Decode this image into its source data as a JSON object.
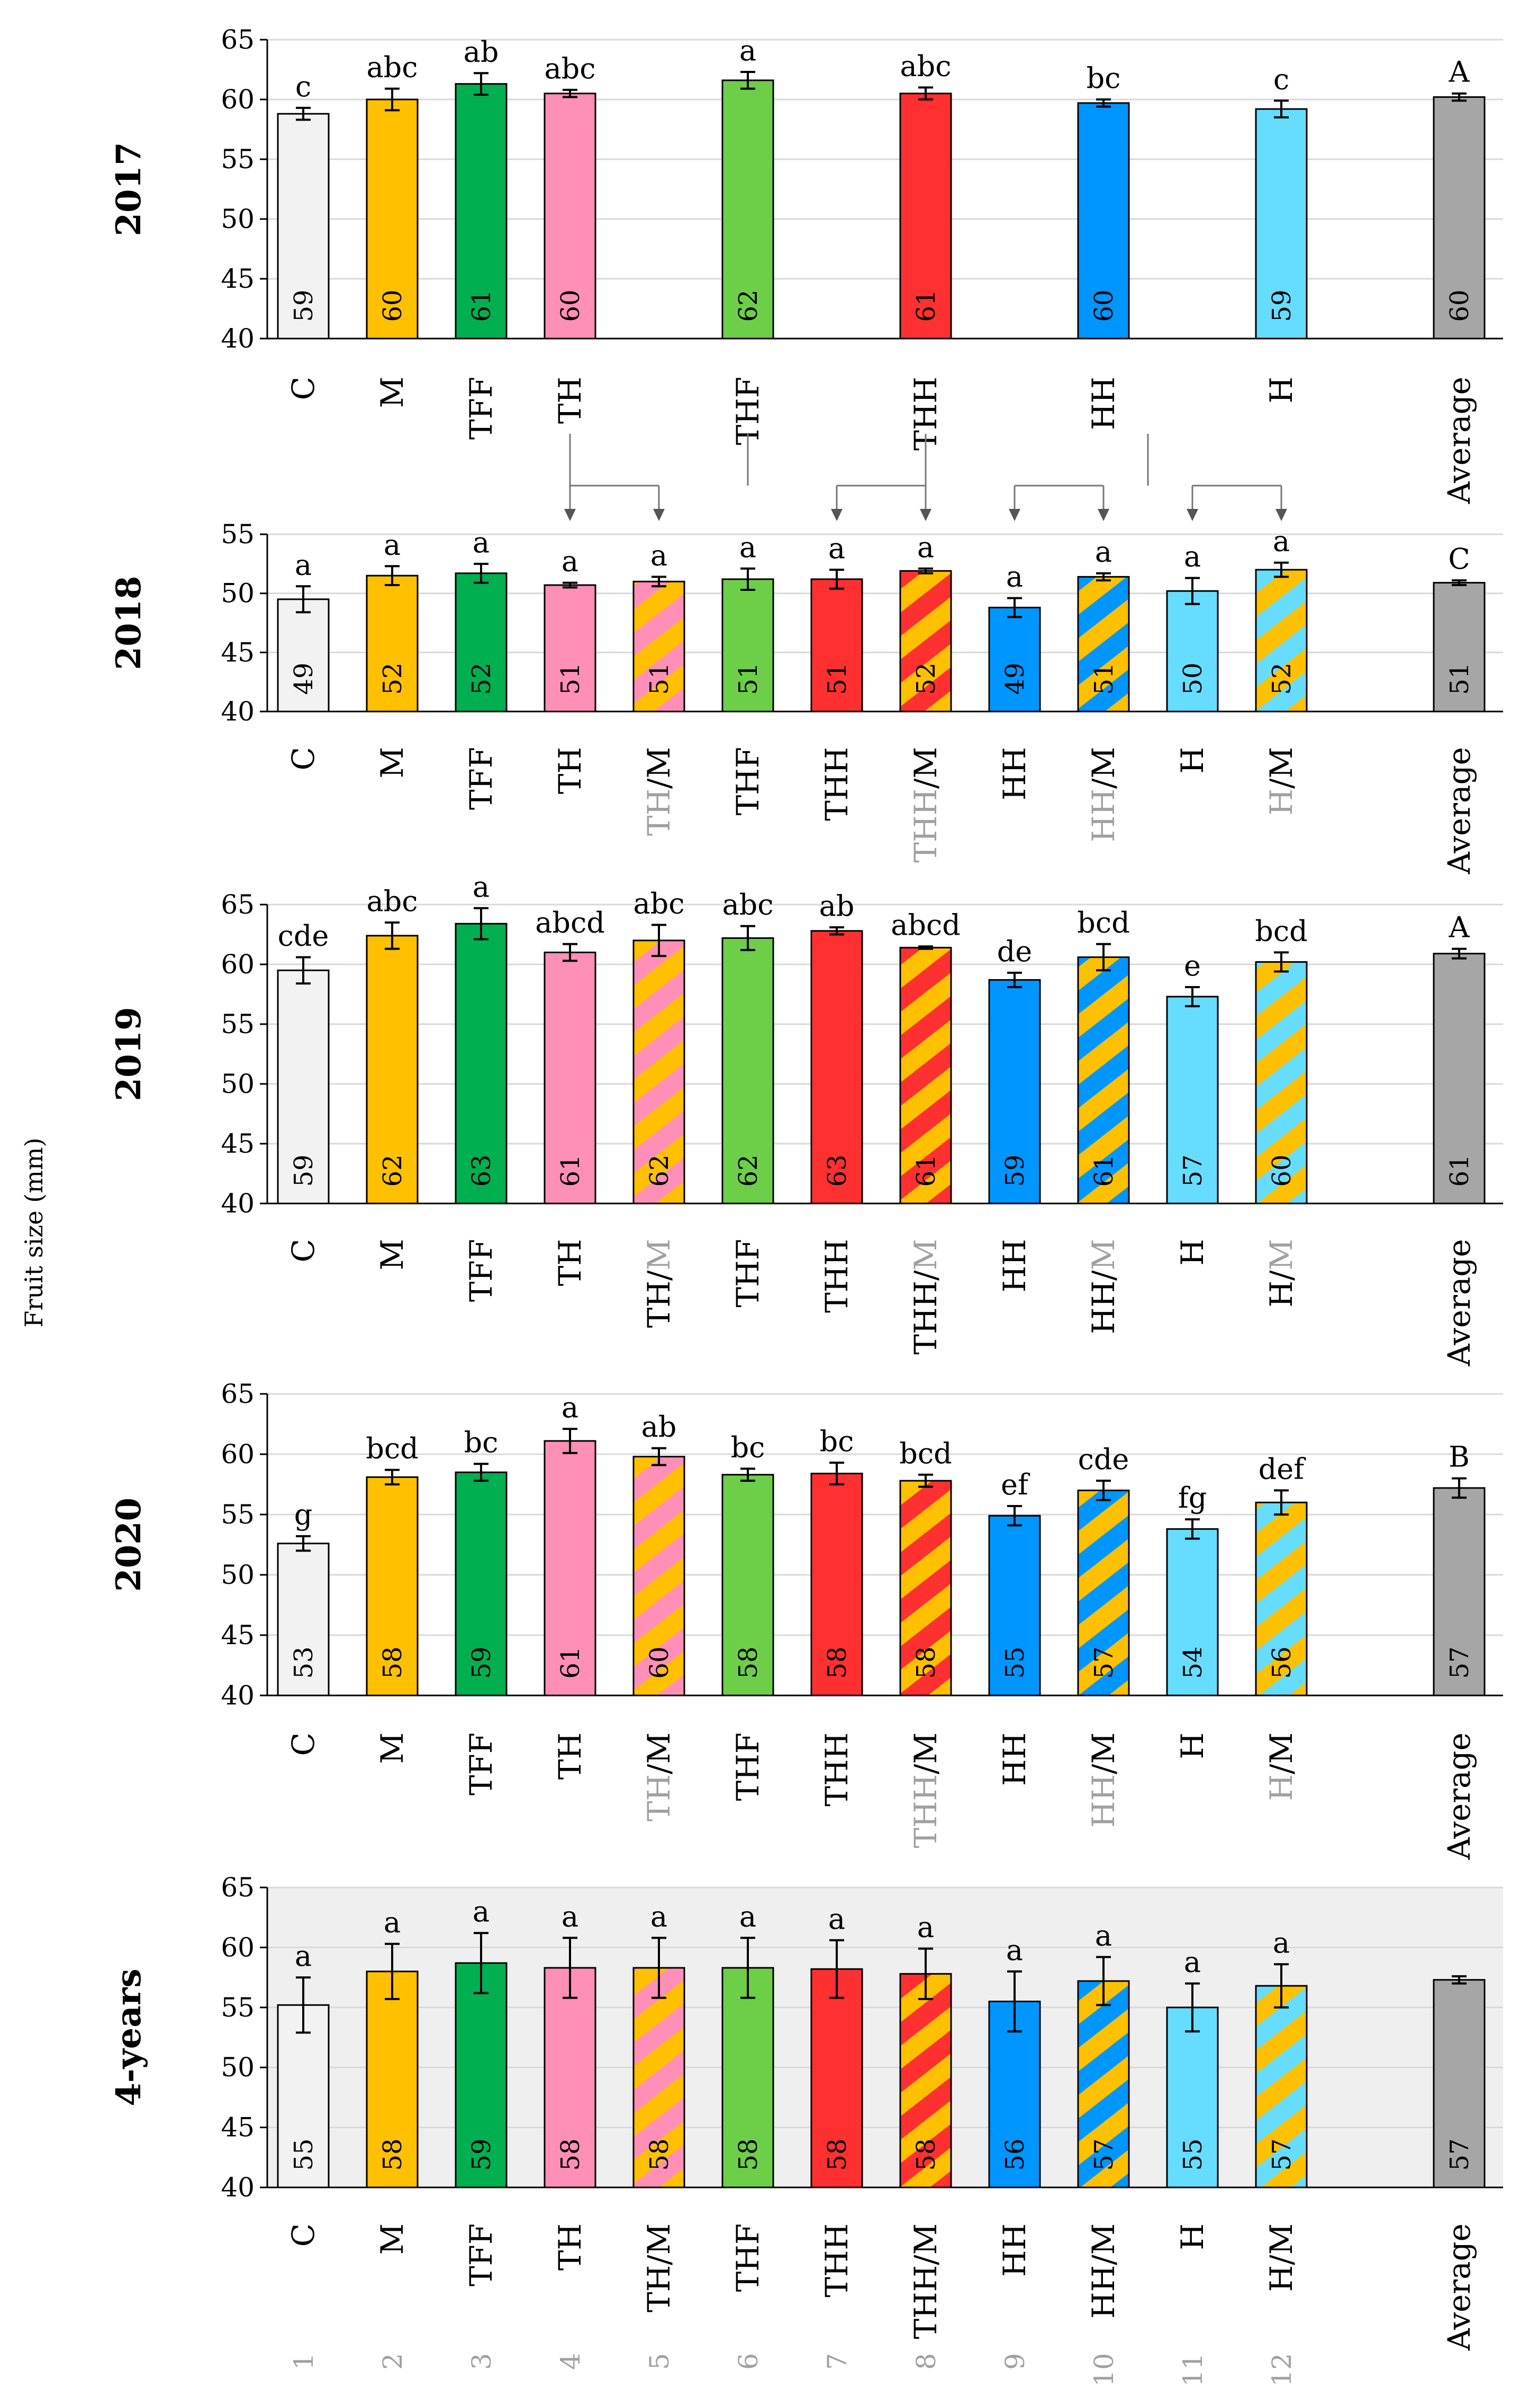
{
  "figure": {
    "ylabel": "Fruit size (mm)",
    "bottom_numbers": [
      "1",
      "2",
      "3",
      "4",
      "5",
      "6",
      "7",
      "8",
      "9",
      "10",
      "11",
      "12"
    ]
  },
  "colors": {
    "C": "#f2f2f2",
    "M": "#ffc000",
    "TFF": "#00b050",
    "TH": "#ff8fb6",
    "THF": "#6dcf47",
    "THH": "#ff3030",
    "HH": "#0096ff",
    "H": "#66dcff",
    "Average": "#a6a6a6",
    "stripe": "#ffc000",
    "grey_text": "#a0a0a0",
    "bg_4years": "#efefef"
  },
  "chart_data": [
    {
      "type": "bar",
      "title": "2017",
      "ylim": [
        40,
        65
      ],
      "yticks": [
        40,
        45,
        50,
        55,
        60,
        65
      ],
      "categories": [
        "C",
        "M",
        "TFF",
        "TH",
        "THF",
        "THH",
        "HH",
        "H",
        "Average"
      ],
      "category_slots": [
        1,
        2,
        3,
        4,
        6,
        8,
        10,
        12,
        14
      ],
      "values": [
        58.8,
        60.0,
        61.3,
        60.5,
        61.6,
        60.5,
        59.7,
        59.2,
        60.2
      ],
      "errors": [
        0.5,
        0.9,
        0.9,
        0.3,
        0.7,
        0.5,
        0.3,
        0.7,
        0.3
      ],
      "value_labels": [
        "59",
        "60",
        "61",
        "60",
        "62",
        "61",
        "60",
        "59",
        "60"
      ],
      "letters": [
        "c",
        "abc",
        "ab",
        "abc",
        "a",
        "abc",
        "bc",
        "c",
        "A"
      ],
      "grey_parts": [
        "",
        "",
        "",
        "",
        "",
        "",
        "",
        "",
        ""
      ],
      "plain_parts": [
        "C",
        "M",
        "TFF",
        "TH",
        "THF",
        "THH",
        "HH",
        "H",
        "Average"
      ],
      "striped": [
        false,
        false,
        false,
        false,
        false,
        false,
        false,
        false,
        false
      ],
      "bar_colors": [
        "C",
        "M",
        "TFF",
        "TH",
        "THF",
        "THH",
        "HH",
        "H",
        "Average"
      ]
    },
    {
      "type": "bar",
      "title": "2018",
      "ylim": [
        40,
        55
      ],
      "yticks": [
        40,
        45,
        50,
        55
      ],
      "categories": [
        "C",
        "M",
        "TFF",
        "TH",
        "TH/M",
        "THF",
        "THH",
        "THH/M",
        "HH",
        "HH/M",
        "H",
        "H/M",
        "Average"
      ],
      "category_slots": [
        1,
        2,
        3,
        4,
        5,
        6,
        7,
        8,
        9,
        10,
        11,
        12,
        14
      ],
      "values": [
        49.5,
        51.5,
        51.7,
        50.7,
        51.0,
        51.2,
        51.2,
        51.9,
        48.8,
        51.4,
        50.2,
        52.0,
        50.9
      ],
      "errors": [
        1.1,
        0.8,
        0.8,
        0.2,
        0.4,
        0.9,
        0.8,
        0.2,
        0.8,
        0.3,
        1.1,
        0.6,
        0.2
      ],
      "value_labels": [
        "49",
        "52",
        "52",
        "51",
        "51",
        "51",
        "51",
        "52",
        "49",
        "51",
        "50",
        "52",
        "51"
      ],
      "letters": [
        "a",
        "a",
        "a",
        "a",
        "a",
        "a",
        "a",
        "a",
        "a",
        "a",
        "a",
        "a",
        "C"
      ],
      "grey_parts": [
        "",
        "",
        "",
        "",
        "TH",
        "",
        "",
        "THH",
        "",
        "HH",
        "",
        "H",
        ""
      ],
      "plain_parts": [
        "C",
        "M",
        "TFF",
        "TH",
        "/M",
        "THF",
        "THH",
        "/M",
        "HH",
        "/M",
        "H",
        "/M",
        "Average"
      ],
      "striped": [
        false,
        false,
        false,
        false,
        true,
        false,
        false,
        true,
        false,
        true,
        false,
        true,
        false
      ],
      "bar_colors": [
        "C",
        "M",
        "TFF",
        "TH",
        "TH",
        "THF",
        "THH",
        "THH",
        "HH",
        "HH",
        "H",
        "H",
        "Average"
      ],
      "arrows": [
        {
          "from_slot": 4,
          "from_label": "TH",
          "to_slots": [
            4,
            5
          ]
        },
        {
          "from_slot": 6,
          "from_label": "THH",
          "to_slots": [
            7,
            8
          ]
        },
        {
          "from_slot": 8,
          "from_label": "HH",
          "to_slots": [
            9,
            10
          ]
        },
        {
          "from_slot": 10.5,
          "from_label": "H",
          "to_slots": [
            11,
            12
          ]
        }
      ]
    },
    {
      "type": "bar",
      "title": "2019",
      "ylim": [
        40,
        65
      ],
      "yticks": [
        40,
        45,
        50,
        55,
        60,
        65
      ],
      "categories": [
        "C",
        "M",
        "TFF",
        "TH",
        "TH/M",
        "THF",
        "THH",
        "THH/M",
        "HH",
        "HH/M",
        "H",
        "H/M",
        "Average"
      ],
      "category_slots": [
        1,
        2,
        3,
        4,
        5,
        6,
        7,
        8,
        9,
        10,
        11,
        12,
        14
      ],
      "values": [
        59.5,
        62.4,
        63.4,
        61.0,
        62.0,
        62.2,
        62.8,
        61.4,
        58.7,
        60.6,
        57.3,
        60.2,
        60.9
      ],
      "errors": [
        1.1,
        1.1,
        1.3,
        0.7,
        1.3,
        1.0,
        0.3,
        0.1,
        0.6,
        1.1,
        0.8,
        0.8,
        0.4
      ],
      "value_labels": [
        "59",
        "62",
        "63",
        "61",
        "62",
        "62",
        "63",
        "61",
        "59",
        "61",
        "57",
        "60",
        "61"
      ],
      "letters": [
        "cde",
        "abc",
        "a",
        "abcd",
        "abc",
        "abc",
        "ab",
        "abcd",
        "de",
        "bcd",
        "e",
        "bcd",
        "A"
      ],
      "grey_parts": [
        "",
        "",
        "",
        "",
        "M",
        "",
        "",
        "M",
        "",
        "M",
        "",
        "M",
        ""
      ],
      "plain_parts": [
        "C",
        "M",
        "TFF",
        "TH",
        "TH/",
        "THF",
        "THH",
        "THH/",
        "HH",
        "HH/",
        "H",
        "H/",
        "Average"
      ],
      "grey_position": "after",
      "striped": [
        false,
        false,
        false,
        false,
        true,
        false,
        false,
        true,
        false,
        true,
        false,
        true,
        false
      ],
      "bar_colors": [
        "C",
        "M",
        "TFF",
        "TH",
        "TH",
        "THF",
        "THH",
        "THH",
        "HH",
        "HH",
        "H",
        "H",
        "Average"
      ]
    },
    {
      "type": "bar",
      "title": "2020",
      "ylim": [
        40,
        65
      ],
      "yticks": [
        40,
        45,
        50,
        55,
        60,
        65
      ],
      "categories": [
        "C",
        "M",
        "TFF",
        "TH",
        "TH/M",
        "THF",
        "THH",
        "THH/M",
        "HH",
        "HH/M",
        "H",
        "H/M",
        "Average"
      ],
      "category_slots": [
        1,
        2,
        3,
        4,
        5,
        6,
        7,
        8,
        9,
        10,
        11,
        12,
        14
      ],
      "values": [
        52.6,
        58.1,
        58.5,
        61.1,
        59.8,
        58.3,
        58.4,
        57.8,
        54.9,
        57.0,
        53.8,
        56.0,
        57.2
      ],
      "errors": [
        0.6,
        0.6,
        0.7,
        1.0,
        0.7,
        0.5,
        0.9,
        0.5,
        0.8,
        0.8,
        0.8,
        1.0,
        0.8
      ],
      "value_labels": [
        "53",
        "58",
        "59",
        "61",
        "60",
        "58",
        "58",
        "58",
        "55",
        "57",
        "54",
        "56",
        "57"
      ],
      "letters": [
        "g",
        "bcd",
        "bc",
        "a",
        "ab",
        "bc",
        "bc",
        "bcd",
        "ef",
        "cde",
        "fg",
        "def",
        "B"
      ],
      "grey_parts": [
        "",
        "",
        "",
        "",
        "TH",
        "",
        "",
        "THH",
        "",
        "HH",
        "",
        "H",
        ""
      ],
      "plain_parts": [
        "C",
        "M",
        "TFF",
        "TH",
        "/M",
        "THF",
        "THH",
        "/M",
        "HH",
        "/M",
        "H",
        "/M",
        "Average"
      ],
      "striped": [
        false,
        false,
        false,
        false,
        true,
        false,
        false,
        true,
        false,
        true,
        false,
        true,
        false
      ],
      "bar_colors": [
        "C",
        "M",
        "TFF",
        "TH",
        "TH",
        "THF",
        "THH",
        "THH",
        "HH",
        "HH",
        "H",
        "H",
        "Average"
      ]
    },
    {
      "type": "bar",
      "title": "4-years",
      "ylim": [
        40,
        65
      ],
      "yticks": [
        40,
        45,
        50,
        55,
        60,
        65
      ],
      "categories": [
        "C",
        "M",
        "TFF",
        "TH",
        "TH/M",
        "THF",
        "THH",
        "THH/M",
        "HH",
        "HH/M",
        "H",
        "H/M",
        "Average"
      ],
      "category_slots": [
        1,
        2,
        3,
        4,
        5,
        6,
        7,
        8,
        9,
        10,
        11,
        12,
        14
      ],
      "values": [
        55.2,
        58.0,
        58.7,
        58.3,
        58.3,
        58.3,
        58.2,
        57.8,
        55.5,
        57.2,
        55.0,
        56.8,
        57.3
      ],
      "errors": [
        2.3,
        2.3,
        2.5,
        2.5,
        2.5,
        2.5,
        2.4,
        2.1,
        2.5,
        2.0,
        2.0,
        1.8,
        0.3
      ],
      "value_labels": [
        "55",
        "58",
        "59",
        "58",
        "58",
        "58",
        "58",
        "58",
        "56",
        "57",
        "55",
        "57",
        "57"
      ],
      "letters": [
        "a",
        "a",
        "a",
        "a",
        "a",
        "a",
        "a",
        "a",
        "a",
        "a",
        "a",
        "a",
        ""
      ],
      "grey_parts": [
        "",
        "",
        "",
        "",
        "",
        "",
        "",
        "",
        "",
        "",
        "",
        "",
        ""
      ],
      "plain_parts": [
        "C",
        "M",
        "TFF",
        "TH",
        "TH/M",
        "THF",
        "THH",
        "THH/M",
        "HH",
        "HH/M",
        "H",
        "H/M",
        "Average"
      ],
      "striped": [
        false,
        false,
        false,
        false,
        true,
        false,
        false,
        true,
        false,
        true,
        false,
        true,
        false
      ],
      "bar_colors": [
        "C",
        "M",
        "TFF",
        "TH",
        "TH",
        "THF",
        "THH",
        "THH",
        "HH",
        "HH",
        "H",
        "H",
        "Average"
      ],
      "shaded_background": true
    }
  ]
}
